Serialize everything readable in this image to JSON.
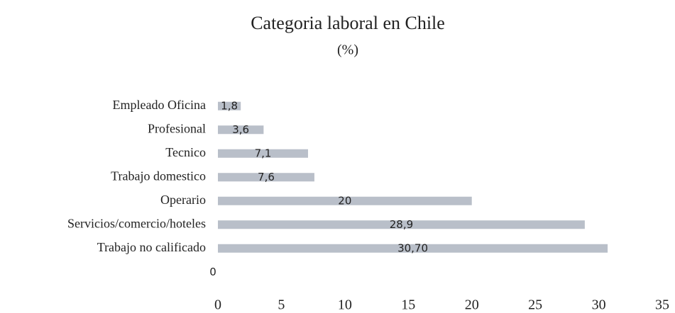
{
  "chart_data": {
    "type": "bar",
    "orientation": "horizontal",
    "title": "Categoria laboral en Chile",
    "subtitle": "(%)",
    "categories": [
      "Empleado Oficina",
      "Profesional",
      "Tecnico",
      "Trabajo domestico",
      "Operario",
      "Servicios/comercio/hoteles",
      "Trabajo no calificado",
      null
    ],
    "values": [
      1.8,
      3.6,
      7.1,
      7.6,
      20,
      28.9,
      30.7,
      0
    ],
    "value_labels": [
      "1,8",
      "3,6",
      "7,1",
      "7,6",
      "20",
      "28,9",
      "30,70",
      "0"
    ],
    "color": "#b9bfc9",
    "xlim": [
      0,
      35
    ],
    "xticks": [
      0,
      5,
      10,
      15,
      20,
      25,
      30,
      35
    ],
    "grid": false
  }
}
